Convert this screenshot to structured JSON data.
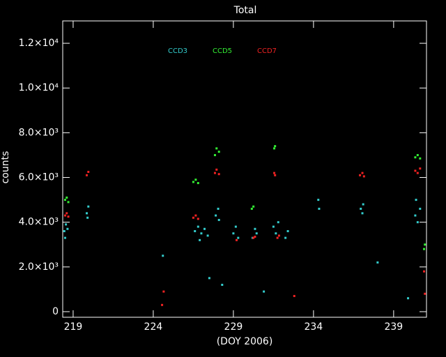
{
  "chart_data": {
    "type": "scatter",
    "title": "Total",
    "xlabel": "(DOY 2006)",
    "ylabel": "counts",
    "xlim": [
      218.35,
      241.05
    ],
    "ylim": [
      -250,
      13000
    ],
    "xticks": [
      219,
      224,
      229,
      234,
      239
    ],
    "yticks": [
      0,
      {
        "value": 2000,
        "label": "2.0×10³"
      },
      {
        "value": 4000,
        "label": "4.0×10³"
      },
      {
        "value": 6000,
        "label": "6.0×10³"
      },
      {
        "value": 8000,
        "label": "8.0×10³"
      },
      {
        "value": 10000,
        "label": "1.0×10⁴"
      },
      {
        "value": 12000,
        "label": "1.2×10⁴"
      }
    ],
    "series": [
      {
        "name": "CCD3",
        "color": "#33cccc",
        "x": [
          218.45,
          218.55,
          218.65,
          218.5,
          219.85,
          219.95,
          219.9,
          226.6,
          226.8,
          227.0,
          227.2,
          227.4,
          226.9,
          227.9,
          228.05,
          228.1,
          229.0,
          229.15,
          229.3,
          230.2,
          230.35,
          230.45,
          231.5,
          231.65,
          231.8,
          232.25,
          232.4,
          234.3,
          234.35,
          236.95,
          237.05,
          237.1,
          240.35,
          240.5,
          240.65,
          240.4,
          227.5,
          228.3,
          230.9,
          238.0,
          224.6,
          239.9
        ],
        "y": [
          3600,
          3900,
          3700,
          3300,
          4400,
          4700,
          4200,
          3600,
          3800,
          3500,
          3700,
          3400,
          3200,
          4300,
          4600,
          4100,
          3500,
          3800,
          3300,
          3300,
          3700,
          3500,
          3800,
          3500,
          4000,
          3300,
          3600,
          5000,
          4600,
          4600,
          4400,
          4800,
          4300,
          4000,
          4600,
          5000,
          1500,
          1200,
          900,
          2200,
          2500,
          600
        ]
      },
      {
        "name": "CCD5",
        "color": "#33ee33",
        "x": [
          218.5,
          218.6,
          218.7,
          226.5,
          226.65,
          226.8,
          227.85,
          227.95,
          228.1,
          230.15,
          230.25,
          231.55,
          231.6,
          240.35,
          240.5,
          240.65,
          240.9,
          240.95
        ],
        "y": [
          5000,
          5100,
          4900,
          5800,
          5900,
          5750,
          7000,
          7300,
          7150,
          4600,
          4700,
          7300,
          7400,
          6900,
          7000,
          6850,
          2800,
          3000
        ]
      },
      {
        "name": "CCD7",
        "color": "#ee2222",
        "x": [
          218.5,
          218.6,
          218.7,
          219.85,
          219.95,
          224.55,
          224.65,
          226.5,
          226.65,
          226.8,
          227.85,
          227.95,
          228.1,
          229.2,
          230.25,
          230.35,
          231.55,
          231.6,
          231.75,
          231.85,
          232.8,
          236.9,
          237.05,
          237.15,
          240.35,
          240.5,
          240.65,
          240.9,
          240.95
        ],
        "y": [
          4300,
          4400,
          4250,
          6100,
          6250,
          300,
          900,
          4200,
          4300,
          4150,
          6200,
          6350,
          6150,
          3200,
          3300,
          3350,
          6200,
          6100,
          3300,
          3400,
          700,
          6100,
          6200,
          6050,
          6300,
          6200,
          6400,
          1800,
          800
        ]
      }
    ]
  }
}
